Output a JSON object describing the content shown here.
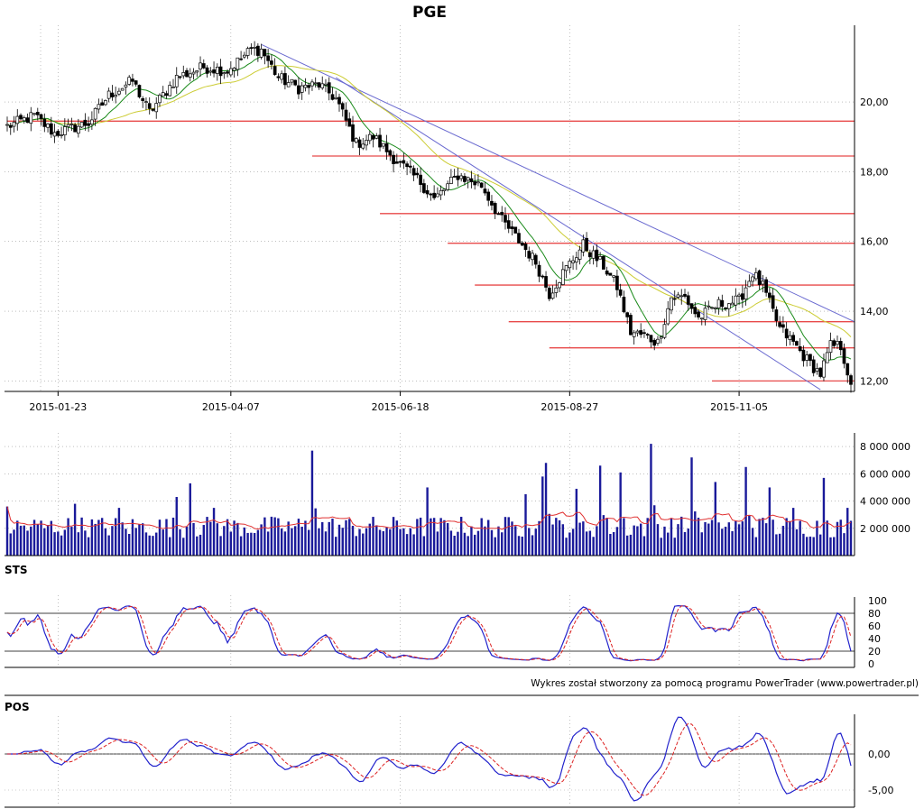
{
  "chart_data": {
    "type": "candlestick",
    "title": "PGE",
    "credit": "Wykres został stworzony za pomocą programu PowerTrader (www.powertrader.pl)",
    "colors": {
      "candle": "#000000",
      "sma_short": "#1a8a1a",
      "sma_long": "#cccc33",
      "support": "#e84a4a",
      "trendline": "#6a6ad0",
      "volume_bar": "#1a1a9a",
      "volume_avg": "#e03030",
      "osc_main": "#2222cc",
      "osc_signal": "#dd2222",
      "grid": "#999999"
    },
    "price": {
      "y_ticks": [
        "12,00",
        "14,00",
        "16,00",
        "18,00",
        "20,00"
      ],
      "y_tick_values": [
        12,
        14,
        16,
        18,
        20
      ],
      "ylim": [
        11.7,
        22.2
      ],
      "x_ticks": [
        "2015-01-23",
        "2015-04-07",
        "2015-06-18",
        "2015-08-27",
        "2015-11-05"
      ],
      "x_tick_index": [
        15,
        66,
        116,
        166,
        216
      ],
      "n_candles": 250,
      "anchors": [
        [
          0,
          19.3
        ],
        [
          8,
          19.6
        ],
        [
          14,
          19.1
        ],
        [
          24,
          19.4
        ],
        [
          30,
          20.2
        ],
        [
          37,
          20.6
        ],
        [
          42,
          19.7
        ],
        [
          50,
          20.7
        ],
        [
          58,
          21.0
        ],
        [
          65,
          20.9
        ],
        [
          72,
          21.5
        ],
        [
          75,
          21.5
        ],
        [
          80,
          20.7
        ],
        [
          86,
          20.4
        ],
        [
          92,
          20.5
        ],
        [
          97,
          20.1
        ],
        [
          103,
          18.8
        ],
        [
          108,
          19.0
        ],
        [
          115,
          18.3
        ],
        [
          122,
          17.7
        ],
        [
          126,
          17.2
        ],
        [
          133,
          17.9
        ],
        [
          140,
          17.6
        ],
        [
          146,
          16.6
        ],
        [
          152,
          15.9
        ],
        [
          156,
          15.4
        ],
        [
          160,
          14.5
        ],
        [
          164,
          15.1
        ],
        [
          170,
          15.9
        ],
        [
          176,
          15.3
        ],
        [
          180,
          14.7
        ],
        [
          184,
          13.4
        ],
        [
          188,
          13.3
        ],
        [
          192,
          13.1
        ],
        [
          196,
          14.4
        ],
        [
          200,
          14.4
        ],
        [
          204,
          13.8
        ],
        [
          210,
          14.2
        ],
        [
          216,
          14.3
        ],
        [
          220,
          15.1
        ],
        [
          223,
          14.7
        ],
        [
          228,
          13.5
        ],
        [
          232,
          13.1
        ],
        [
          236,
          12.6
        ],
        [
          240,
          12.2
        ],
        [
          243,
          13.0
        ],
        [
          246,
          13.0
        ],
        [
          249,
          11.9
        ]
      ],
      "support_levels": [
        {
          "level": 19.45,
          "from_index": 0
        },
        {
          "level": 18.45,
          "from_index": 90
        },
        {
          "level": 16.8,
          "from_index": 110
        },
        {
          "level": 15.95,
          "from_index": 130
        },
        {
          "level": 14.75,
          "from_index": 138
        },
        {
          "level": 13.7,
          "from_index": 148
        },
        {
          "level": 12.95,
          "from_index": 160
        },
        {
          "level": 12.0,
          "from_index": 208
        }
      ],
      "trendlines": [
        {
          "from": [
            75,
            21.65
          ],
          "to": [
            250,
            13.7
          ]
        },
        {
          "from": [
            97,
            20.7
          ],
          "to": [
            240,
            11.75
          ]
        }
      ]
    },
    "volume": {
      "y_ticks": [
        "2 000 000",
        "4 000 000",
        "6 000 000",
        "8 000 000"
      ],
      "y_tick_values": [
        2000000,
        4000000,
        6000000,
        8000000
      ],
      "ylim": [
        0,
        9000000
      ],
      "spikes": [
        [
          0,
          3600000
        ],
        [
          20,
          3800000
        ],
        [
          33,
          3500000
        ],
        [
          50,
          4300000
        ],
        [
          54,
          5300000
        ],
        [
          61,
          3500000
        ],
        [
          90,
          7700000
        ],
        [
          124,
          5000000
        ],
        [
          153,
          4500000
        ],
        [
          158,
          5800000
        ],
        [
          159,
          6800000
        ],
        [
          168,
          4900000
        ],
        [
          175,
          6600000
        ],
        [
          181,
          6100000
        ],
        [
          190,
          8200000
        ],
        [
          202,
          7200000
        ],
        [
          209,
          5400000
        ],
        [
          218,
          6500000
        ],
        [
          225,
          5000000
        ],
        [
          232,
          3500000
        ],
        [
          241,
          5700000
        ],
        [
          248,
          3500000
        ]
      ]
    },
    "sts": {
      "name": "STS",
      "y_ticks": [
        "0",
        "20",
        "40",
        "60",
        "80",
        "100"
      ],
      "y_tick_values": [
        0,
        20,
        40,
        60,
        80,
        100
      ],
      "ylim": [
        0,
        100
      ],
      "hlines": [
        20,
        80
      ]
    },
    "pos": {
      "name": "POS",
      "y_ticks": [
        "0,00",
        "-5,00"
      ],
      "y_tick_values": [
        0,
        -5
      ],
      "ylim": [
        -7,
        4.5
      ],
      "hlines": [
        0
      ]
    }
  }
}
